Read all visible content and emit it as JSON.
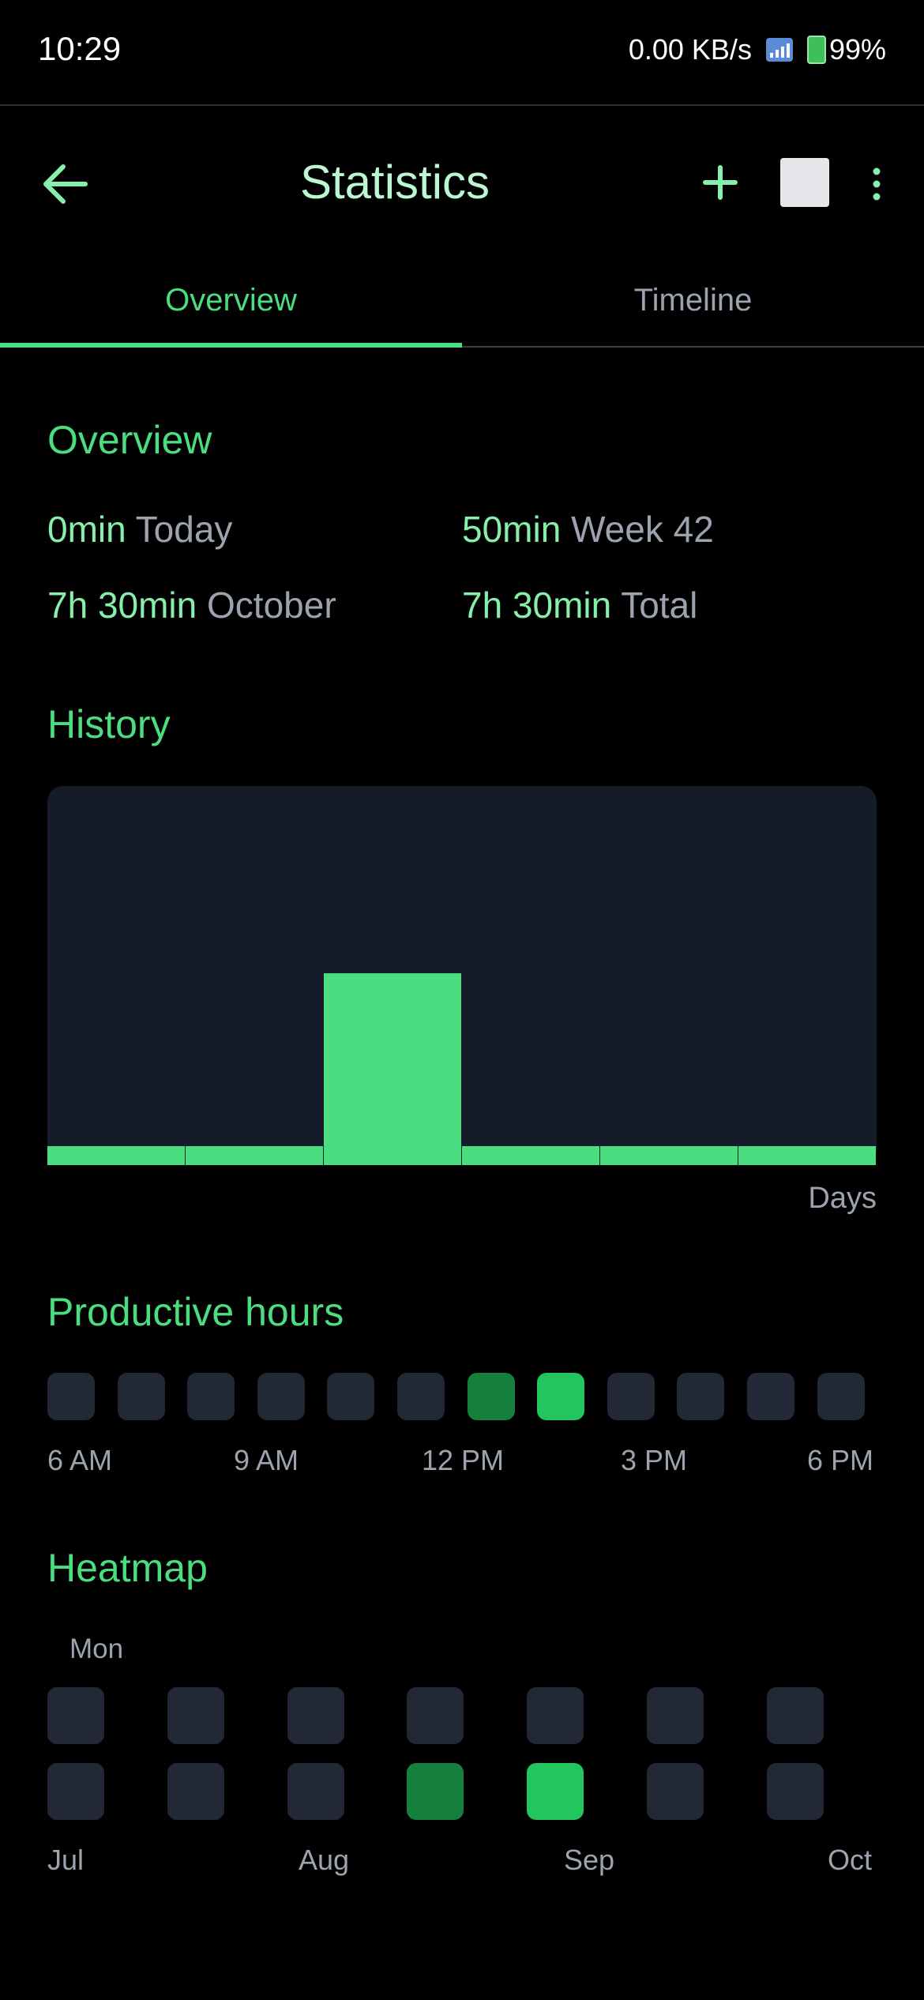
{
  "status_bar": {
    "time": "10:29",
    "net_speed": "0.00 KB/s",
    "battery": "99%",
    "signal_icon": "signal-icon",
    "battery_icon": "battery-icon"
  },
  "app_bar": {
    "title": "Statistics",
    "back_icon": "arrow-left-icon",
    "add_icon": "plus-icon",
    "stop_icon": "stop-icon",
    "more_icon": "more-vertical-icon"
  },
  "tabs": [
    {
      "label": "Overview",
      "active": true
    },
    {
      "label": "Timeline",
      "active": false
    }
  ],
  "overview": {
    "title": "Overview",
    "stats": [
      {
        "value": "0min",
        "label": "Today"
      },
      {
        "value": "50min",
        "label": "Week 42"
      },
      {
        "value": "7h 30min",
        "label": "October"
      },
      {
        "value": "7h 30min",
        "label": "Total"
      }
    ]
  },
  "history": {
    "title": "History",
    "x_unit_label": "Days"
  },
  "chart_data": {
    "type": "bar",
    "title": "History",
    "xlabel": "Days",
    "ylabel": "",
    "categories": [
      "",
      "",
      "",
      "",
      "",
      ""
    ],
    "values": [
      0,
      0,
      1,
      0,
      0,
      0
    ],
    "ylim": [
      0,
      2
    ],
    "grid": false,
    "color": "#4ade80"
  },
  "productive_hours": {
    "title": "Productive hours",
    "levels": [
      0,
      0,
      0,
      0,
      0,
      0,
      1,
      2,
      0,
      0,
      0,
      0
    ],
    "labels": [
      "6 AM",
      "9 AM",
      "12 PM",
      "3 PM",
      "6 PM"
    ]
  },
  "heatmap": {
    "title": "Heatmap",
    "day_label": "Mon",
    "rows": [
      [
        0,
        0,
        0,
        0,
        0,
        0,
        0
      ],
      [
        0,
        0,
        0,
        1,
        2,
        0,
        0
      ]
    ],
    "months": [
      "Jul",
      "Aug",
      "Sep",
      "Oct"
    ]
  },
  "colors": {
    "accent": "#4ade80",
    "empty": "#222836",
    "level1": "#15803d",
    "level2": "#22c55e",
    "chart_bg": "#161b29"
  }
}
